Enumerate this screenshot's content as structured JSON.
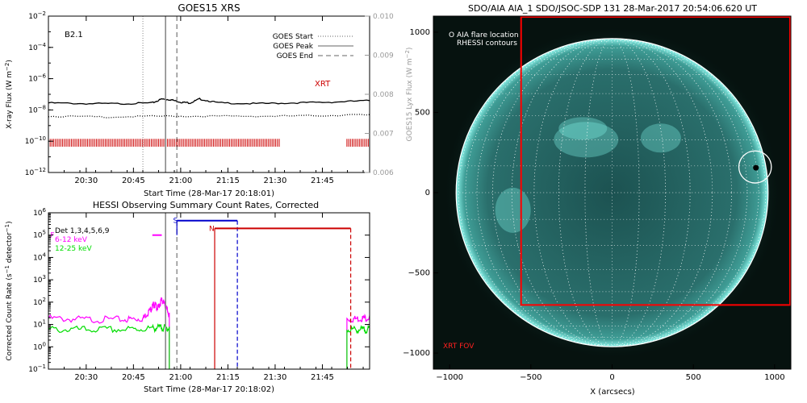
{
  "chart_data": [
    {
      "type": "line",
      "title": "GOES15 XRS",
      "xlabel": "Start Time (28-Mar-17 20:18:01)",
      "ylabel": "X-ray Flux (W m^-2)",
      "ylabel_right": "GOES15 Lyx Flux (W m^-2)",
      "class_label": "B2.1",
      "xlim": [
        20.3,
        22.0
      ],
      "ylim_log": [
        -12,
        -2
      ],
      "y2lim": [
        0.006,
        0.01
      ],
      "x_ticks": [
        {
          "v": 20.5,
          "label": "20:30"
        },
        {
          "v": 20.75,
          "label": "20:45"
        },
        {
          "v": 21.0,
          "label": "21:00"
        },
        {
          "v": 21.25,
          "label": "21:15"
        },
        {
          "v": 21.5,
          "label": "21:30"
        },
        {
          "v": 21.75,
          "label": "21:45"
        }
      ],
      "y_ticks": [
        {
          "e": -12,
          "label": "10^-12"
        },
        {
          "e": -10,
          "label": "10^-10"
        },
        {
          "e": -8,
          "label": "10^-8"
        },
        {
          "e": -6,
          "label": "10^-6"
        },
        {
          "e": -4,
          "label": "10^-4"
        },
        {
          "e": -2,
          "label": "10^-2"
        }
      ],
      "y2_ticks": [
        "0.006",
        "0.007",
        "0.008",
        "0.009",
        "0.010"
      ],
      "legend": [
        {
          "label": "GOES Start",
          "style": "dotted"
        },
        {
          "label": "GOES Peak",
          "style": "solid"
        },
        {
          "label": "GOES End",
          "style": "dashed"
        }
      ],
      "markers": {
        "start": 20.8,
        "peak": 20.92,
        "end": 20.98
      },
      "series": [
        {
          "name": "",
          "color": "#000000",
          "style": "solid",
          "x": [
            20.3,
            20.5,
            20.7,
            20.85,
            20.9,
            20.95,
            21.0,
            21.05,
            21.1,
            21.2,
            21.4,
            21.6,
            21.8,
            22.0
          ],
          "log10y": [
            -7.55,
            -7.6,
            -7.6,
            -7.55,
            -7.3,
            -7.35,
            -7.5,
            -7.55,
            -7.3,
            -7.55,
            -7.6,
            -7.55,
            -7.5,
            -7.4
          ]
        },
        {
          "name": "",
          "color": "#000000",
          "style": "dotted",
          "x": [
            20.3,
            20.6,
            20.9,
            21.2,
            21.5,
            21.8,
            22.0
          ],
          "log10y": [
            -8.4,
            -8.45,
            -8.4,
            -8.4,
            -8.4,
            -8.35,
            -8.3
          ]
        }
      ],
      "xrt_label": "XRT",
      "xrt_color": "#cc0000",
      "xrt_intervals": [
        [
          20.3,
          21.53
        ],
        [
          21.88,
          22.0
        ]
      ]
    },
    {
      "type": "line",
      "title": "HESSI Observing Summary Count Rates, Corrected",
      "xlabel": "Start Time (28-Mar-17 20:18:02)",
      "ylabel": "Corrected Count Rate (s^-1 detector^-1)",
      "xlim": [
        20.3,
        22.0
      ],
      "ylim_log": [
        -1,
        6
      ],
      "x_ticks": [
        {
          "v": 20.5,
          "label": "20:30"
        },
        {
          "v": 20.75,
          "label": "20:45"
        },
        {
          "v": 21.0,
          "label": "21:00"
        },
        {
          "v": 21.25,
          "label": "21:15"
        },
        {
          "v": 21.5,
          "label": "21:30"
        },
        {
          "v": 21.75,
          "label": "21:45"
        }
      ],
      "y_ticks": [
        {
          "e": -1,
          "label": "10^-1"
        },
        {
          "e": 0,
          "label": "10^0"
        },
        {
          "e": 1,
          "label": "10^1"
        },
        {
          "e": 2,
          "label": "10^2"
        },
        {
          "e": 3,
          "label": "10^3"
        },
        {
          "e": 4,
          "label": "10^4"
        },
        {
          "e": 5,
          "label": "10^5"
        },
        {
          "e": 6,
          "label": "10^6"
        }
      ],
      "legend": [
        {
          "label": "Det 1,3,4,5,6,9",
          "color": "#000000"
        },
        {
          "label": "6-12 keV",
          "color": "#ff00ff"
        },
        {
          "label": "12-25 keV",
          "color": "#00dd00"
        }
      ],
      "markers": {
        "peak": 20.92,
        "end": 20.98
      },
      "series": [
        {
          "name": "6-12 keV",
          "color": "#ff00ff",
          "segments": [
            {
              "x": [
                20.3,
                20.5,
                20.7,
                20.8,
                20.84,
                20.86,
                20.88,
                20.9,
                20.92,
                20.94
              ],
              "log10y": [
                1.35,
                1.3,
                1.3,
                1.35,
                1.75,
                2.0,
                1.8,
                2.2,
                1.9,
                1.5
              ]
            },
            {
              "x": [
                21.88,
                21.95,
                22.0
              ],
              "log10y": [
                1.3,
                1.35,
                1.4
              ]
            }
          ]
        },
        {
          "name": "12-25 keV",
          "color": "#00dd00",
          "segments": [
            {
              "x": [
                20.3,
                20.5,
                20.7,
                20.85,
                20.9,
                20.94
              ],
              "log10y": [
                0.85,
                0.85,
                0.85,
                0.9,
                0.95,
                0.9
              ]
            },
            {
              "x": [
                21.88,
                21.95,
                22.0
              ],
              "log10y": [
                0.85,
                0.85,
                0.85
              ]
            }
          ]
        }
      ],
      "bars": [
        {
          "label": "F",
          "color": "#ff00ff",
          "x": [
            20.85,
            20.9
          ],
          "log10y": 5.0,
          "label_x": 20.31
        },
        {
          "label": "S",
          "color": "#0000cc",
          "x": [
            20.98,
            21.3
          ],
          "log10y": 5.65,
          "label_x": 20.96,
          "end_line": "dashed"
        },
        {
          "label": "N",
          "color": "#cc0000",
          "x": [
            21.18,
            21.9
          ],
          "log10y": 5.3,
          "label_x": 21.15,
          "end_line": "dashed"
        }
      ],
      "lines": [
        {
          "color": "#cc0000",
          "x": 21.18,
          "from": -1,
          "to": 5.3
        },
        {
          "color": "#0000cc",
          "x": 20.98,
          "from": 5.0,
          "to": 5.65
        }
      ]
    },
    {
      "type": "image",
      "title": "SDO/AIA AIA_1 SDO/JSOC-SDP 131 28-Mar-2017 20:54:06.620 UT",
      "xlabel": "X (arcsecs)",
      "xlim": [
        -1100,
        1100
      ],
      "ylim": [
        -1100,
        1100
      ],
      "x_ticks": [
        {
          "v": -1000,
          "label": "−1000"
        },
        {
          "v": -500,
          "label": "−500"
        },
        {
          "v": 0,
          "label": "0"
        },
        {
          "v": 500,
          "label": "500"
        },
        {
          "v": 1000,
          "label": "1000"
        }
      ],
      "y_ticks": [
        {
          "v": -1000,
          "label": "−1000"
        },
        {
          "v": -500,
          "label": "−500"
        },
        {
          "v": 0,
          "label": "0"
        },
        {
          "v": 500,
          "label": "500"
        },
        {
          "v": 1000,
          "label": "1000"
        }
      ],
      "legend": [
        "O AIA flare location",
        "RHESSI contours"
      ],
      "solar_radius": 960,
      "flare": {
        "x": 880,
        "y": 160,
        "circle_r": 100
      },
      "xrt_fov": {
        "label": "XRT FOV",
        "x0": -560,
        "x1": 1100,
        "y0": -700,
        "y1": 1100,
        "color": "#ff0000"
      },
      "colors": {
        "disk": "#2d7a78",
        "limb": "#64e6d8",
        "background": "#06120f"
      }
    }
  ]
}
